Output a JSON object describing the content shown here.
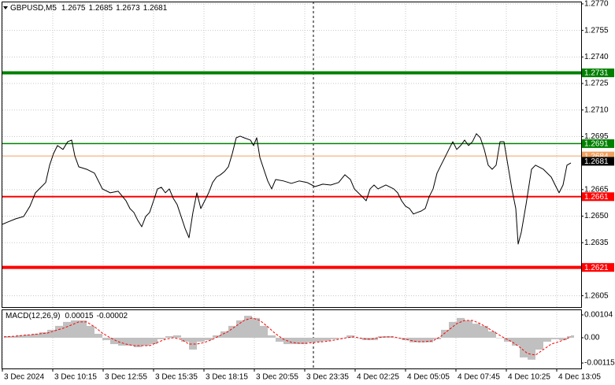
{
  "chart_data": [
    {
      "type": "line",
      "title": "GBPUSD,M5",
      "ohlc": [
        1.2675,
        1.2685,
        1.2673,
        1.2681
      ],
      "x": [
        0,
        3.5,
        8.5,
        13.5,
        17.5,
        21,
        24.5,
        27.5,
        30,
        32.5,
        35,
        38.5,
        41.5,
        44,
        46,
        48.5,
        53.5,
        58.5,
        63.5,
        68.5,
        73.5,
        78.5,
        81,
        83.5,
        86,
        88.5,
        91,
        93.5,
        96,
        98.5,
        101,
        103.5,
        106,
        108.5,
        111,
        113.5,
        116,
        118.5,
        121,
        123.5,
        126,
        128.5,
        131,
        133.5,
        136,
        138.5,
        141,
        143.5,
        146,
        148.5,
        151,
        153.5,
        157.5,
        159.5,
        161.5,
        163.5,
        166,
        168.5,
        171,
        173.5,
        178.5,
        183.5,
        188.5,
        193.5,
        198.5,
        203.5,
        208.5,
        213.5,
        217.5,
        221,
        223.5,
        226,
        228.5,
        231,
        233.5,
        236,
        238.5,
        243.5,
        248.5,
        251,
        253.5,
        256,
        258.5,
        261,
        263.5,
        266,
        268.5,
        271,
        273.5,
        276,
        278.5,
        281,
        283.5,
        286,
        288.5,
        291,
        293.5,
        296,
        298.5,
        301,
        303.5,
        306,
        308.5,
        311,
        313.5,
        316,
        318.5,
        321,
        323.5,
        326,
        327.5,
        329.5,
        332.5,
        336,
        338.5,
        343.5,
        348.5,
        351,
        353.5,
        356,
        358.5,
        361
      ],
      "series": [
        {
          "color": "#000000",
          "values": [
            1.26454,
            1.26467,
            1.26485,
            1.26498,
            1.26556,
            1.26632,
            1.26663,
            1.2669,
            1.26788,
            1.26854,
            1.26899,
            1.26877,
            1.26921,
            1.2693,
            1.26841,
            1.26779,
            1.26765,
            1.26743,
            1.26654,
            1.26632,
            1.26641,
            1.26587,
            1.26543,
            1.26521,
            1.26476,
            1.2644,
            1.26498,
            1.26521,
            1.26587,
            1.26654,
            1.26663,
            1.26632,
            1.26654,
            1.26601,
            1.26565,
            1.26498,
            1.26431,
            1.26378,
            1.26521,
            1.26632,
            1.26543,
            1.26587,
            1.26632,
            1.2669,
            1.26721,
            1.26734,
            1.26752,
            1.26779,
            1.26854,
            1.26943,
            1.26952,
            1.26943,
            1.2693,
            1.26899,
            1.26943,
            1.26832,
            1.26765,
            1.26699,
            1.26654,
            1.26707,
            1.26699,
            1.26685,
            1.26699,
            1.2669,
            1.26667,
            1.26681,
            1.26676,
            1.2669,
            1.26734,
            1.26707,
            1.26654,
            1.26632,
            1.2661,
            1.26587,
            1.26654,
            1.26676,
            1.26654,
            1.26676,
            1.26654,
            1.26632,
            1.26587,
            1.26556,
            1.26543,
            1.26512,
            1.26521,
            1.26529,
            1.26543,
            1.2661,
            1.26654,
            1.26743,
            1.26788,
            1.26832,
            1.26877,
            1.26921,
            1.26877,
            1.26899,
            1.2693,
            1.26899,
            1.26921,
            1.26966,
            1.26943,
            1.26877,
            1.26788,
            1.26765,
            1.26788,
            1.26921,
            1.26921,
            1.26788,
            1.26654,
            1.26543,
            1.26342,
            1.26409,
            1.26565,
            1.26765,
            1.26788,
            1.26765,
            1.26721,
            1.26676,
            1.26632,
            1.26676,
            1.26788,
            1.26801
          ]
        }
      ],
      "xlim": [
        0,
        368
      ],
      "ylim": [
        1.25986,
        1.27713
      ],
      "yticks": [
        {
          "value": 1.277,
          "label": "1.2770"
        },
        1.2755,
        {
          "value": 1.274,
          "label": "1.2740"
        },
        1.2725,
        {
          "value": 1.271,
          "label": "1.2710"
        },
        1.2695,
        1.2665,
        {
          "value": 1.265,
          "label": "1.2650"
        },
        1.2635,
        1.2605
      ],
      "xticks": [
        {
          "value": 0,
          "label": "3 Dec 2024"
        },
        {
          "value": 32,
          "label": "3 Dec 10:15"
        },
        {
          "value": 64,
          "label": "3 Dec 12:55"
        },
        {
          "value": 96,
          "label": "3 Dec 15:35"
        },
        {
          "value": 128,
          "label": "3 Dec 18:15"
        },
        {
          "value": 160,
          "label": "3 Dec 20:55"
        },
        {
          "value": 192,
          "label": "3 Dec 23:35"
        },
        {
          "value": 224,
          "label": "4 Dec 02:25"
        },
        {
          "value": 256,
          "label": "4 Dec 05:05"
        },
        {
          "value": 288,
          "label": "4 Dec 07:45"
        },
        {
          "value": 320,
          "label": "4 Dec 10:25"
        },
        {
          "value": 352,
          "label": "4 Dec 13:05"
        }
      ],
      "grid": true,
      "levels": [
        {
          "value": 1.2731,
          "color": "#008000",
          "width": 4
        },
        {
          "value": 1.2691,
          "color": "#008000",
          "width": 1.5
        },
        {
          "value": 1.2684,
          "color": "#f0a060",
          "width": 1
        },
        {
          "value": 1.2661,
          "color": "#ff0000",
          "width": 2
        },
        {
          "value": 1.2621,
          "color": "#ff0000",
          "width": 4
        }
      ],
      "last": {
        "value": 1.2681,
        "color": "#000000"
      }
    },
    {
      "type": "macd",
      "title": "MACD(12,26,9)",
      "readings": [
        0.00015,
        -2e-05
      ],
      "x": [
        1,
        8.5,
        13.5,
        18.5,
        23.5,
        28.5,
        33.5,
        38.5,
        43.5,
        48.5,
        53.5,
        58.5,
        63.5,
        68.5,
        73.5,
        78.5,
        83.5,
        88.5,
        93.5,
        98.5,
        103.5,
        108.5,
        113.5,
        118.5,
        123.5,
        128.5,
        133.5,
        138.5,
        143.5,
        148.5,
        153.5,
        158.5,
        163.5,
        168.5,
        173.5,
        178.5,
        183.5,
        188.5,
        193.5,
        198.5,
        203.5,
        208.5,
        213.5,
        218.5,
        223.5,
        228.5,
        233.5,
        238.5,
        243.5,
        248.5,
        253.5,
        258.5,
        263.5,
        268.5,
        273.5,
        278.5,
        283.5,
        288.5,
        293.5,
        298.5,
        303.5,
        308.5,
        313.5,
        318.5,
        323.5,
        328.5,
        333.5,
        338.5,
        343.5,
        348.5,
        353.5,
        358.5,
        361
      ],
      "series": [
        {
          "kind": "bar",
          "color": "#c0c0c0",
          "values": [
            7e-05,
            0.00011,
            0.00014,
            0.00018,
            0.00025,
            0.00036,
            0.00054,
            0.00072,
            0.00079,
            0.00079,
            0.00054,
            0.00018,
            -0.00011,
            -0.00029,
            -0.00036,
            -0.00036,
            -0.00043,
            -0.00036,
            -0.00029,
            -7e-05,
            7e-05,
            0.00011,
            -0.00018,
            -0.00054,
            -0.00018,
            -0.00011,
            0.00011,
            0.00029,
            0.00054,
            0.00079,
            0.001,
            0.0009,
            0.00054,
            0.00011,
            -0.00018,
            -0.00029,
            -0.00029,
            -0.00029,
            -0.00021,
            -0.00018,
            -0.00014,
            -7e-05,
            0,
            0.00011,
            0,
            -0.00011,
            -0.00011,
            7e-05,
            7e-05,
            0,
            -0.00011,
            -0.00021,
            -0.00021,
            -0.00021,
            -7e-05,
            0.00036,
            0.00072,
            0.0009,
            0.00079,
            0.00064,
            0.00054,
            0.00029,
            0,
            -0.00018,
            -0.00036,
            -0.0009,
            -0.001,
            -0.00054,
            -0.00018,
            -7e-05,
            -0.00011,
            7e-05,
            0.00011
          ]
        },
        {
          "kind": "line",
          "color": "#ff0000",
          "dashed": true,
          "values": [
            4e-05,
            7e-05,
            0.00011,
            0.00014,
            0.00018,
            0.00021,
            0.00032,
            0.00043,
            0.00057,
            0.00072,
            0.00072,
            0.0005,
            0.00021,
            0,
            -0.00018,
            -0.00029,
            -0.00036,
            -0.00036,
            -0.00036,
            -0.00021,
            -7e-05,
            0,
            -7e-05,
            -0.00029,
            -0.00029,
            -0.00021,
            -7e-05,
            0.00011,
            0.00029,
            0.00054,
            0.00079,
            0.0009,
            0.00079,
            0.0005,
            0.00018,
            -7e-05,
            -0.00021,
            -0.00025,
            -0.00025,
            -0.00021,
            -0.00018,
            -0.00014,
            -7e-05,
            0,
            4e-05,
            -4e-05,
            -7e-05,
            0,
            4e-05,
            4e-05,
            -4e-05,
            -0.00011,
            -0.00018,
            -0.00018,
            -0.00014,
            7e-05,
            0.00036,
            0.00064,
            0.00079,
            0.00079,
            0.00064,
            0.00043,
            0.00021,
            0,
            -0.00018,
            -0.00043,
            -0.00072,
            -0.00079,
            -0.00054,
            -0.00029,
            -0.00018,
            -4e-05,
            4e-05
          ]
        }
      ],
      "xlim": [
        0,
        368
      ],
      "ylim": [
        -0.0014,
        0.00129
      ],
      "yticks": [
        0.00104,
        {
          "value": 0,
          "label": "0.00"
        },
        -0.00115
      ]
    }
  ]
}
